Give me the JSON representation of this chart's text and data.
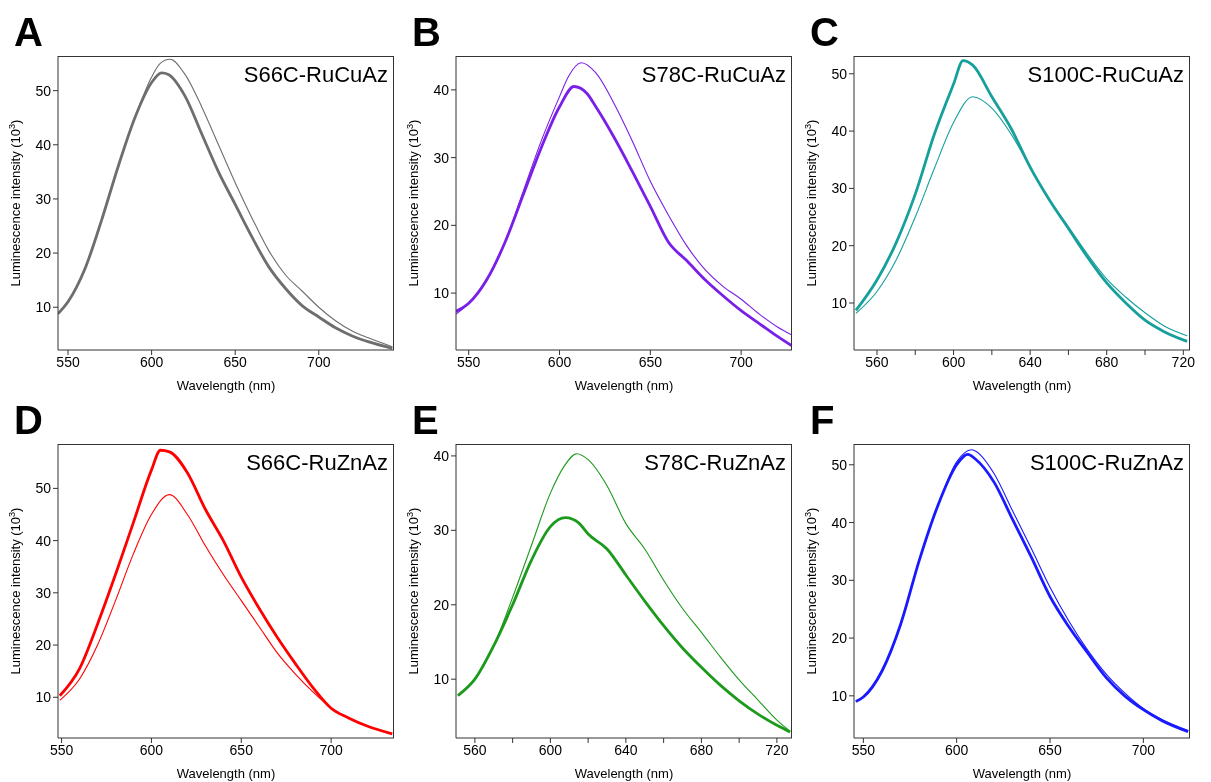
{
  "chart_data": [
    {
      "type": "line",
      "title": "A",
      "subtitle": "S66C-RuCuAz",
      "xlabel": "Wavelength (nm)",
      "ylabel": "Luminescence intensity (10$^{3}$)",
      "xlim": [
        544,
        745
      ],
      "ylim": [
        2.1,
        56.4
      ],
      "xticks": [
        550,
        600,
        650,
        700
      ],
      "yticks": [
        10,
        20,
        30,
        40,
        50
      ],
      "grid": false,
      "legend": false,
      "marker": "none",
      "line_style": "solid",
      "series": [
        {
          "color": "#6e6e6e",
          "x": [
            544,
            550,
            560,
            570,
            580,
            590,
            600,
            606,
            610,
            620,
            630,
            640,
            650,
            660,
            670,
            680,
            690,
            700,
            710,
            720,
            730,
            744
          ],
          "values": [
            8.8,
            11,
            17,
            26,
            36,
            45,
            51.5,
            53.3,
            53,
            49,
            42,
            35,
            29,
            23,
            17.5,
            13.5,
            10.3,
            8.2,
            6.2,
            4.7,
            3.6,
            2.4
          ]
        },
        {
          "color": "#6e6e6e",
          "x": [
            544,
            550,
            560,
            570,
            580,
            590,
            600,
            605,
            611,
            620,
            630,
            640,
            650,
            660,
            670,
            680,
            690,
            700,
            710,
            720,
            730,
            744
          ],
          "values": [
            8.8,
            11,
            17,
            26,
            36,
            45,
            52.5,
            55,
            55.8,
            53,
            47,
            40,
            33,
            26.5,
            20.5,
            16,
            13,
            10,
            7.5,
            5.6,
            4.3,
            2.7
          ]
        }
      ]
    },
    {
      "type": "line",
      "title": "B",
      "subtitle": "S78C-RuCuAz",
      "xlabel": "Wavelength (nm)",
      "ylabel": "Luminescence intensity (10$^{3}$)",
      "xlim": [
        543,
        728
      ],
      "ylim": [
        1.6,
        45
      ],
      "xticks": [
        550,
        600,
        650,
        700
      ],
      "yticks": [
        10,
        20,
        30,
        40
      ],
      "grid": false,
      "legend": false,
      "marker": "none",
      "line_style": "solid",
      "series": [
        {
          "color": "#7a1fe8",
          "x": [
            543,
            550,
            560,
            570,
            580,
            590,
            600,
            608,
            615,
            620,
            630,
            640,
            650,
            660,
            670,
            680,
            690,
            700,
            710,
            720,
            728
          ],
          "values": [
            7.3,
            8.5,
            12,
            17.5,
            24.5,
            31.5,
            37.5,
            40.5,
            39.5,
            37.5,
            33,
            28,
            22.8,
            17.5,
            14.8,
            12,
            9.6,
            7.4,
            5.5,
            3.6,
            2.2
          ]
        },
        {
          "color": "#7a1fe8",
          "x": [
            543,
            550,
            560,
            570,
            580,
            590,
            600,
            605,
            612,
            620,
            630,
            640,
            650,
            660,
            670,
            680,
            690,
            700,
            710,
            720,
            728
          ],
          "values": [
            6.9,
            8.5,
            12,
            17.5,
            25,
            32.5,
            39,
            42,
            44,
            42.5,
            38,
            32.5,
            26.5,
            21.5,
            17,
            13.5,
            11,
            9.1,
            6.9,
            5,
            3.8
          ]
        }
      ]
    },
    {
      "type": "line",
      "title": "C",
      "subtitle": "S100C-RuCuAz",
      "xlabel": "Wavelength (nm)",
      "ylabel": "Luminescence intensity (10$^{3}$)",
      "xlim": [
        548,
        723.5
      ],
      "ylim": [
        1.8,
        53.1
      ],
      "xticks": [
        560,
        {
          "value": 580,
          "label": null
        },
        600,
        {
          "value": 620,
          "label": null
        },
        640,
        {
          "value": 660,
          "label": null
        },
        680,
        {
          "value": 700,
          "label": null
        },
        720
      ],
      "yticks": [
        10,
        20,
        30,
        40,
        50
      ],
      "grid": false,
      "legend": false,
      "marker": "none",
      "line_style": "solid",
      "series": [
        {
          "color": "#16a09c",
          "x": [
            549,
            560,
            570,
            580,
            590,
            600,
            605,
            610,
            620,
            630,
            640,
            650,
            660,
            670,
            680,
            690,
            700,
            710,
            722
          ],
          "values": [
            8.7,
            14,
            20.5,
            29,
            39.5,
            48.2,
            52.3,
            51.5,
            46,
            40.5,
            33.7,
            28,
            23,
            18,
            13.5,
            10,
            7,
            5,
            3.3
          ]
        },
        {
          "color": "#16a09c",
          "x": [
            549,
            560,
            570,
            580,
            590,
            600,
            610,
            620,
            630,
            640,
            650,
            660,
            670,
            680,
            690,
            700,
            710,
            722
          ],
          "values": [
            8.2,
            12,
            17.5,
            25,
            33.5,
            41.5,
            46,
            44,
            39.5,
            33.7,
            28,
            23.3,
            18.5,
            14.2,
            11,
            8.3,
            6,
            4.3
          ]
        }
      ]
    },
    {
      "type": "line",
      "title": "D",
      "subtitle": "S66C-RuZnAz",
      "xlabel": "Wavelength (nm)",
      "ylabel": "Luminescence intensity (10$^{3}$)",
      "xlim": [
        548,
        735
      ],
      "ylim": [
        2.2,
        58.5
      ],
      "xticks": [
        550,
        600,
        650,
        700
      ],
      "yticks": [
        10,
        20,
        30,
        40,
        50
      ],
      "grid": false,
      "legend": false,
      "marker": "none",
      "line_style": "solid",
      "series": [
        {
          "color": "#ff0000",
          "x": [
            549,
            560,
            570,
            580,
            590,
            600,
            605,
            610,
            620,
            630,
            640,
            650,
            660,
            670,
            680,
            690,
            700,
            710,
            720,
            734
          ],
          "values": [
            10.3,
            15.5,
            24,
            33.5,
            43.5,
            53.5,
            57.3,
            57,
            53,
            46,
            40,
            33,
            27,
            21.5,
            16.5,
            11.8,
            7.9,
            6,
            4.5,
            3
          ]
        },
        {
          "color": "#ff0000",
          "x": [
            549,
            560,
            570,
            580,
            590,
            600,
            610,
            620,
            630,
            640,
            650,
            660,
            670,
            680,
            690,
            700,
            710,
            720,
            734
          ],
          "values": [
            9.4,
            13.5,
            20,
            28.5,
            37.5,
            45,
            48.8,
            45,
            39,
            33.5,
            28.5,
            23.5,
            18.5,
            14.5,
            11,
            8,
            6,
            4.5,
            3
          ]
        }
      ]
    },
    {
      "type": "line",
      "title": "E",
      "subtitle": "S78C-RuZnAz",
      "xlabel": "Wavelength (nm)",
      "ylabel": "Luminescence intensity (10$^{3}$)",
      "xlim": [
        550,
        728
      ],
      "ylim": [
        2.1,
        41.6
      ],
      "xticks": [
        560,
        {
          "value": 580,
          "label": null
        },
        600,
        {
          "value": 620,
          "label": null
        },
        640,
        {
          "value": 660,
          "label": null
        },
        680,
        {
          "value": 700,
          "label": null
        },
        720
      ],
      "yticks": [
        10,
        20,
        30,
        40
      ],
      "grid": false,
      "legend": false,
      "marker": "none",
      "line_style": "solid",
      "series": [
        {
          "color": "#1c9a1c",
          "x": [
            551,
            560,
            570,
            580,
            590,
            600,
            608,
            615,
            620,
            630,
            640,
            650,
            660,
            670,
            680,
            690,
            700,
            710,
            720,
            727
          ],
          "values": [
            7.8,
            10,
            14.5,
            20,
            26,
            30.5,
            31.7,
            31,
            29.5,
            27.5,
            24,
            20.5,
            17.2,
            14.2,
            11.6,
            9.2,
            7.1,
            5.3,
            3.8,
            2.9
          ]
        },
        {
          "color": "#1c9a1c",
          "x": [
            551,
            560,
            570,
            580,
            590,
            600,
            607,
            614,
            620,
            630,
            640,
            650,
            660,
            670,
            680,
            690,
            700,
            710,
            720,
            727
          ],
          "values": [
            7.8,
            10,
            14.5,
            21,
            28,
            35,
            38.5,
            40.3,
            39.5,
            36,
            30.9,
            27.5,
            23.3,
            19.5,
            16.3,
            13,
            9.9,
            7.2,
            4.5,
            3
          ]
        }
      ]
    },
    {
      "type": "line",
      "title": "F",
      "subtitle": "S100C-RuZnAz",
      "xlabel": "Wavelength (nm)",
      "ylabel": "Luminescence intensity (10$^{3}$)",
      "xlim": [
        545,
        725
      ],
      "ylim": [
        2.7,
        53.6
      ],
      "xticks": [
        550,
        600,
        650,
        700
      ],
      "yticks": [
        10,
        20,
        30,
        40,
        50
      ],
      "grid": false,
      "legend": false,
      "marker": "none",
      "line_style": "solid",
      "series": [
        {
          "color": "#1a1aff",
          "x": [
            546,
            550,
            560,
            570,
            580,
            590,
            600,
            606,
            610,
            620,
            630,
            640,
            650,
            660,
            670,
            680,
            690,
            700,
            710,
            724
          ],
          "values": [
            9,
            9.8,
            14.3,
            22.4,
            33.5,
            43,
            50,
            51.8,
            51,
            47,
            40.5,
            34,
            27.2,
            22,
            17.5,
            13.2,
            10,
            7.6,
            5.7,
            3.8
          ]
        },
        {
          "color": "#1a1aff",
          "x": [
            546,
            550,
            560,
            570,
            580,
            590,
            600,
            608,
            610,
            620,
            630,
            640,
            650,
            660,
            670,
            680,
            690,
            700,
            710,
            724
          ],
          "values": [
            9,
            9.8,
            14.3,
            22.4,
            33.5,
            43,
            50.5,
            52.6,
            52.4,
            48.5,
            42,
            35.5,
            28.8,
            23,
            18,
            13.8,
            10.5,
            7.8,
            5.9,
            4
          ]
        }
      ]
    }
  ]
}
